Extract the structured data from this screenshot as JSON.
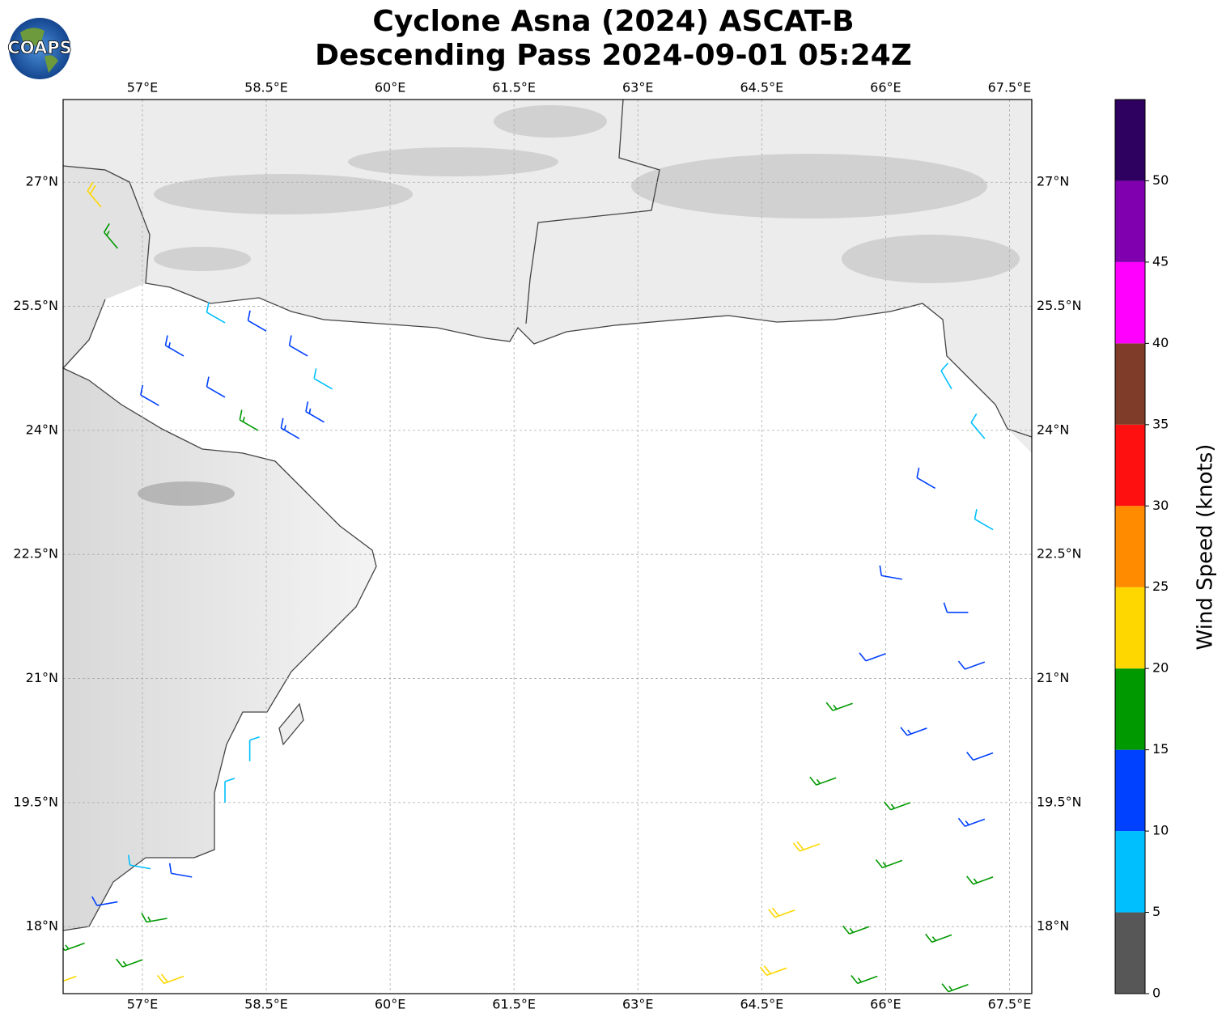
{
  "logo_text": "COAPS",
  "chart_data": {
    "type": "map",
    "title": "Cyclone Asna (2024) ASCAT-B",
    "subtitle": "Descending Pass 2024-09-01 05:24Z",
    "xlim": [
      56.04,
      67.77
    ],
    "ylim": [
      17.19,
      28.0
    ],
    "xticks": [
      {
        "value": 57,
        "label": "57°E"
      },
      {
        "value": 58.5,
        "label": "58.5°E"
      },
      {
        "value": 60,
        "label": "60°E"
      },
      {
        "value": 61.5,
        "label": "61.5°E"
      },
      {
        "value": 63,
        "label": "63°E"
      },
      {
        "value": 64.5,
        "label": "64.5°E"
      },
      {
        "value": 66,
        "label": "66°E"
      },
      {
        "value": 67.5,
        "label": "67.5°E"
      }
    ],
    "yticks": [
      {
        "value": 18,
        "label": "18°N"
      },
      {
        "value": 19.5,
        "label": "19.5°N"
      },
      {
        "value": 21,
        "label": "21°N"
      },
      {
        "value": 22.5,
        "label": "22.5°N"
      },
      {
        "value": 24,
        "label": "24°N"
      },
      {
        "value": 25.5,
        "label": "25.5°N"
      },
      {
        "value": 27,
        "label": "27°N"
      }
    ],
    "grid": true,
    "colorbar": {
      "label": "Wind Speed (knots)",
      "bins": [
        0,
        5,
        10,
        15,
        20,
        25,
        30,
        35,
        40,
        45,
        50,
        55
      ],
      "colors": [
        "#575757",
        "#00bfff",
        "#0040ff",
        "#009900",
        "#ffd700",
        "#ff8c00",
        "#ff1010",
        "#7f3c28",
        "#ff00ff",
        "#8000b0",
        "#2e0060"
      ],
      "ticks": [
        0,
        5,
        10,
        15,
        20,
        25,
        30,
        35,
        40,
        45,
        50
      ]
    },
    "barbs": [
      [
        58.0,
        25.3,
        8,
        300
      ],
      [
        58.5,
        25.2,
        12,
        300
      ],
      [
        59.0,
        24.9,
        12,
        300
      ],
      [
        59.3,
        24.5,
        8,
        300
      ],
      [
        57.5,
        24.9,
        13,
        300
      ],
      [
        58.0,
        24.4,
        12,
        300
      ],
      [
        58.4,
        24.0,
        17,
        300
      ],
      [
        58.9,
        23.9,
        13,
        300
      ],
      [
        57.2,
        24.3,
        12,
        300
      ],
      [
        59.2,
        24.1,
        13,
        300
      ],
      [
        56.7,
        26.2,
        17,
        320
      ],
      [
        56.5,
        26.7,
        22,
        320
      ],
      [
        66.8,
        24.5,
        8,
        330
      ],
      [
        67.2,
        23.9,
        8,
        320
      ],
      [
        66.6,
        23.3,
        12,
        300
      ],
      [
        67.3,
        22.8,
        8,
        300
      ],
      [
        66.2,
        22.2,
        12,
        280
      ],
      [
        67.0,
        21.8,
        12,
        270
      ],
      [
        66.0,
        21.3,
        12,
        250
      ],
      [
        67.2,
        21.2,
        12,
        250
      ],
      [
        65.6,
        20.7,
        17,
        250
      ],
      [
        66.5,
        20.4,
        13,
        250
      ],
      [
        67.3,
        20.1,
        12,
        250
      ],
      [
        65.4,
        19.8,
        17,
        250
      ],
      [
        66.3,
        19.5,
        17,
        250
      ],
      [
        67.2,
        19.3,
        13,
        250
      ],
      [
        65.2,
        19.0,
        22,
        250
      ],
      [
        66.2,
        18.8,
        17,
        250
      ],
      [
        67.3,
        18.6,
        17,
        250
      ],
      [
        64.9,
        18.2,
        22,
        250
      ],
      [
        65.8,
        18.0,
        17,
        250
      ],
      [
        66.8,
        17.9,
        17,
        250
      ],
      [
        64.8,
        17.5,
        22,
        250
      ],
      [
        65.9,
        17.4,
        17,
        250
      ],
      [
        67.0,
        17.3,
        17,
        250
      ],
      [
        57.1,
        18.7,
        8,
        280
      ],
      [
        57.6,
        18.6,
        12,
        280
      ],
      [
        56.7,
        18.3,
        12,
        260
      ],
      [
        57.3,
        18.1,
        17,
        260
      ],
      [
        56.3,
        17.8,
        17,
        250
      ],
      [
        57.0,
        17.6,
        17,
        250
      ],
      [
        57.5,
        17.4,
        22,
        250
      ],
      [
        56.2,
        17.4,
        22,
        250
      ],
      [
        58.3,
        20.0,
        8,
        0
      ],
      [
        58.0,
        19.5,
        8,
        0
      ]
    ]
  }
}
